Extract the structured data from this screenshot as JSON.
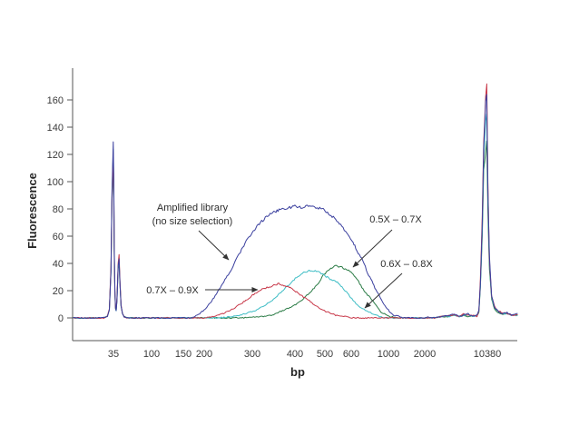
{
  "chart_data": {
    "type": "line",
    "title": "",
    "xlabel": "bp",
    "ylabel": "Fluorescence",
    "x_scale": "nonlinear-size-ladder",
    "grid": false,
    "legend_position": "none (arrow annotations)",
    "x_ticks": [
      35,
      100,
      150,
      200,
      300,
      400,
      500,
      600,
      1000,
      2000,
      10380
    ],
    "y_ticks": [
      0,
      20,
      40,
      60,
      80,
      100,
      120,
      140,
      160
    ],
    "ylim": [
      -17,
      183
    ],
    "markers": {
      "lower_marker_bp": 35,
      "upper_marker_bp": 10380
    },
    "annotations": {
      "amplified_library": {
        "line1": "Amplified library",
        "line2": "(no size selection)",
        "points_to": "Amplified library (no size selection)"
      },
      "sel_05_07": {
        "label": "0.5X – 0.7X",
        "points_to": "0.5X – 0.7X"
      },
      "sel_06_08": {
        "label": "0.6X – 0.8X",
        "points_to": "0.6X – 0.8X"
      },
      "sel_07_09": {
        "label": "0.7X – 0.9X",
        "points_to": "0.7X – 0.9X"
      }
    },
    "series": [
      {
        "name": "0.5X – 0.7X",
        "color": "#2a7b45",
        "points": [
          [
            15,
            0
          ],
          [
            24,
            0
          ],
          [
            30,
            0
          ],
          [
            32,
            1
          ],
          [
            33,
            6
          ],
          [
            33.8,
            34
          ],
          [
            34.3,
            86
          ],
          [
            34.9,
            116
          ],
          [
            35.6,
            90
          ],
          [
            36.4,
            46
          ],
          [
            37.5,
            18
          ],
          [
            38.6,
            7
          ],
          [
            39.6,
            5
          ],
          [
            41,
            13
          ],
          [
            43,
            36
          ],
          [
            44.6,
            41
          ],
          [
            46,
            26
          ],
          [
            48,
            9
          ],
          [
            50.5,
            3
          ],
          [
            53,
            1
          ],
          [
            58,
            0
          ],
          [
            85,
            0
          ],
          [
            130,
            0
          ],
          [
            180,
            0
          ],
          [
            230,
            0
          ],
          [
            280,
            0
          ],
          [
            326,
            1
          ],
          [
            347,
            2
          ],
          [
            368,
            5
          ],
          [
            385,
            7
          ],
          [
            403,
            10
          ],
          [
            427,
            14
          ],
          [
            452,
            19
          ],
          [
            476,
            25
          ],
          [
            494,
            31
          ],
          [
            514,
            35
          ],
          [
            534,
            38
          ],
          [
            548,
            38
          ],
          [
            565,
            37
          ],
          [
            586,
            35
          ],
          [
            610,
            33
          ],
          [
            668,
            28
          ],
          [
            727,
            21
          ],
          [
            824,
            13
          ],
          [
            922,
            4
          ],
          [
            1050,
            1
          ],
          [
            1300,
            0
          ],
          [
            1800,
            0
          ],
          [
            2600,
            0
          ],
          [
            3400,
            0
          ],
          [
            4200,
            1
          ],
          [
            5200,
            1
          ],
          [
            6000,
            2
          ],
          [
            6600,
            1
          ],
          [
            7200,
            2
          ],
          [
            7800,
            1
          ],
          [
            8400,
            1
          ],
          [
            9000,
            2
          ],
          [
            9250,
            4
          ],
          [
            9450,
            22
          ],
          [
            9700,
            60
          ],
          [
            9900,
            108
          ],
          [
            10150,
            122
          ],
          [
            10290,
            130
          ],
          [
            10430,
            78
          ],
          [
            10560,
            36
          ],
          [
            10750,
            14
          ],
          [
            11000,
            7
          ],
          [
            11300,
            4
          ],
          [
            11700,
            3
          ],
          [
            12100,
            3
          ],
          [
            12500,
            2
          ],
          [
            13000,
            2
          ]
        ]
      },
      {
        "name": "0.6X – 0.8X",
        "color": "#3fbdc5",
        "points": [
          [
            15,
            0
          ],
          [
            24,
            0
          ],
          [
            30,
            0
          ],
          [
            32,
            1
          ],
          [
            33,
            6
          ],
          [
            33.8,
            36
          ],
          [
            34.3,
            90
          ],
          [
            34.9,
            124
          ],
          [
            35.6,
            96
          ],
          [
            36.4,
            50
          ],
          [
            37.5,
            19
          ],
          [
            38.6,
            7
          ],
          [
            39.6,
            5
          ],
          [
            41,
            14
          ],
          [
            43,
            37
          ],
          [
            44.6,
            43
          ],
          [
            46,
            27
          ],
          [
            48,
            9
          ],
          [
            50.5,
            3
          ],
          [
            53,
            1
          ],
          [
            58,
            0
          ],
          [
            80,
            0
          ],
          [
            120,
            0
          ],
          [
            160,
            0
          ],
          [
            200,
            0
          ],
          [
            228,
            0
          ],
          [
            257,
            1
          ],
          [
            275,
            2
          ],
          [
            294,
            4
          ],
          [
            311,
            6
          ],
          [
            328,
            9
          ],
          [
            347,
            13
          ],
          [
            364,
            18
          ],
          [
            381,
            23
          ],
          [
            398,
            28
          ],
          [
            418,
            32
          ],
          [
            436,
            34
          ],
          [
            455,
            35
          ],
          [
            476,
            34
          ],
          [
            500,
            31
          ],
          [
            524,
            28
          ],
          [
            548,
            26
          ],
          [
            569,
            22
          ],
          [
            590,
            17
          ],
          [
            629,
            12
          ],
          [
            698,
            8
          ],
          [
            766,
            5
          ],
          [
            834,
            3
          ],
          [
            902,
            1
          ],
          [
            971,
            0
          ],
          [
            1200,
            0
          ],
          [
            1600,
            0
          ],
          [
            2200,
            0
          ],
          [
            3000,
            0
          ],
          [
            4200,
            1
          ],
          [
            5200,
            1
          ],
          [
            6000,
            2
          ],
          [
            6600,
            1
          ],
          [
            7200,
            2
          ],
          [
            7800,
            2
          ],
          [
            8400,
            1
          ],
          [
            9000,
            2
          ],
          [
            9250,
            5
          ],
          [
            9450,
            24
          ],
          [
            9700,
            66
          ],
          [
            9900,
            118
          ],
          [
            10150,
            144
          ],
          [
            10300,
            151
          ],
          [
            10430,
            88
          ],
          [
            10560,
            40
          ],
          [
            10750,
            15
          ],
          [
            11000,
            8
          ],
          [
            11300,
            5
          ],
          [
            11700,
            3
          ],
          [
            12100,
            3
          ],
          [
            12500,
            2
          ],
          [
            13000,
            2
          ]
        ]
      },
      {
        "name": "0.7X – 0.9X",
        "color": "#c8394a",
        "points": [
          [
            15,
            0
          ],
          [
            24,
            0
          ],
          [
            30,
            0
          ],
          [
            32,
            1
          ],
          [
            33,
            7
          ],
          [
            33.8,
            38
          ],
          [
            34.3,
            88
          ],
          [
            34.9,
            121
          ],
          [
            35.6,
            93
          ],
          [
            36.4,
            48
          ],
          [
            37.5,
            19
          ],
          [
            38.6,
            7
          ],
          [
            39.6,
            6
          ],
          [
            41,
            15
          ],
          [
            43,
            40
          ],
          [
            44.6,
            46
          ],
          [
            46,
            29
          ],
          [
            48,
            10
          ],
          [
            50.5,
            3
          ],
          [
            53,
            1
          ],
          [
            58,
            0
          ],
          [
            75,
            0
          ],
          [
            105,
            0
          ],
          [
            140,
            0
          ],
          [
            175,
            0
          ],
          [
            200,
            0
          ],
          [
            219,
            1
          ],
          [
            238,
            3
          ],
          [
            257,
            6
          ],
          [
            275,
            10
          ],
          [
            291,
            14
          ],
          [
            306,
            18
          ],
          [
            323,
            21
          ],
          [
            340,
            23
          ],
          [
            353,
            24
          ],
          [
            362,
            25
          ],
          [
            374,
            24
          ],
          [
            389,
            22
          ],
          [
            406,
            19
          ],
          [
            424,
            16
          ],
          [
            445,
            13
          ],
          [
            467,
            9
          ],
          [
            491,
            6
          ],
          [
            514,
            4
          ],
          [
            541,
            2
          ],
          [
            576,
            1
          ],
          [
            610,
            0
          ],
          [
            700,
            0
          ],
          [
            850,
            0
          ],
          [
            1100,
            0
          ],
          [
            1500,
            0
          ],
          [
            2000,
            0
          ],
          [
            2700,
            0
          ],
          [
            3300,
            0
          ],
          [
            4200,
            1
          ],
          [
            5200,
            2
          ],
          [
            6000,
            2
          ],
          [
            6600,
            1
          ],
          [
            7200,
            3
          ],
          [
            7800,
            2
          ],
          [
            8400,
            2
          ],
          [
            9000,
            1
          ],
          [
            9250,
            5
          ],
          [
            9450,
            28
          ],
          [
            9700,
            75
          ],
          [
            9900,
            130
          ],
          [
            10150,
            163
          ],
          [
            10310,
            171
          ],
          [
            10430,
            100
          ],
          [
            10560,
            42
          ],
          [
            10750,
            16
          ],
          [
            11000,
            9
          ],
          [
            11300,
            5
          ],
          [
            11700,
            4
          ],
          [
            12100,
            3
          ],
          [
            12500,
            2
          ],
          [
            13000,
            2
          ]
        ]
      },
      {
        "name": "Amplified library (no size selection)",
        "color": "#3a3f9e",
        "points": [
          [
            15,
            0
          ],
          [
            24,
            0
          ],
          [
            30,
            0
          ],
          [
            32,
            1
          ],
          [
            33,
            6
          ],
          [
            33.8,
            35
          ],
          [
            34.3,
            92
          ],
          [
            34.9,
            129
          ],
          [
            35.6,
            100
          ],
          [
            36.4,
            52
          ],
          [
            37.5,
            20
          ],
          [
            38.6,
            8
          ],
          [
            39.6,
            5
          ],
          [
            41,
            13
          ],
          [
            43,
            38
          ],
          [
            44.6,
            44
          ],
          [
            46,
            27
          ],
          [
            48,
            9
          ],
          [
            50.5,
            3
          ],
          [
            53,
            1
          ],
          [
            58,
            0
          ],
          [
            70,
            0
          ],
          [
            95,
            0
          ],
          [
            125,
            0
          ],
          [
            150,
            0
          ],
          [
            167,
            0
          ],
          [
            178,
            1
          ],
          [
            189,
            3
          ],
          [
            200,
            6
          ],
          [
            213,
            11
          ],
          [
            228,
            19
          ],
          [
            243,
            28
          ],
          [
            257,
            36
          ],
          [
            270,
            45
          ],
          [
            285,
            55
          ],
          [
            300,
            63
          ],
          [
            319,
            70
          ],
          [
            336,
            75
          ],
          [
            353,
            78
          ],
          [
            368,
            80
          ],
          [
            385,
            81
          ],
          [
            400,
            82
          ],
          [
            424,
            81
          ],
          [
            445,
            82
          ],
          [
            470,
            81
          ],
          [
            491,
            80
          ],
          [
            514,
            77
          ],
          [
            541,
            72
          ],
          [
            569,
            66
          ],
          [
            593,
            60
          ],
          [
            620,
            56
          ],
          [
            649,
            51
          ],
          [
            688,
            46
          ],
          [
            727,
            42
          ],
          [
            776,
            33
          ],
          [
            824,
            27
          ],
          [
            854,
            22
          ],
          [
            902,
            16
          ],
          [
            951,
            10
          ],
          [
            1000,
            6
          ],
          [
            1050,
            4
          ],
          [
            1150,
            2
          ],
          [
            1300,
            1
          ],
          [
            1450,
            0
          ],
          [
            1700,
            0
          ],
          [
            2000,
            0
          ],
          [
            2400,
            1
          ],
          [
            2700,
            0
          ],
          [
            3300,
            0
          ],
          [
            4200,
            1
          ],
          [
            5200,
            2
          ],
          [
            6000,
            3
          ],
          [
            6600,
            1
          ],
          [
            7200,
            2
          ],
          [
            7800,
            3
          ],
          [
            8400,
            1
          ],
          [
            9000,
            2
          ],
          [
            9250,
            6
          ],
          [
            9450,
            25
          ],
          [
            9700,
            70
          ],
          [
            9900,
            125
          ],
          [
            10150,
            158
          ],
          [
            10300,
            164
          ],
          [
            10430,
            95
          ],
          [
            10560,
            45
          ],
          [
            10750,
            16
          ],
          [
            11000,
            8
          ],
          [
            11300,
            5
          ],
          [
            11700,
            3
          ],
          [
            12100,
            4
          ],
          [
            12500,
            2
          ],
          [
            13000,
            3
          ]
        ]
      }
    ]
  }
}
